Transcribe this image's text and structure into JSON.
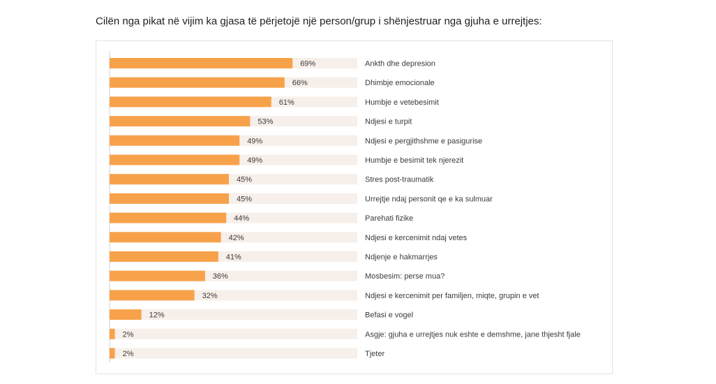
{
  "question": "Cilën nga pikat në vijim ka gjasa të përjetojë një person/grup i shënjestruar nga gjuha e urrejtjes:",
  "colors": {
    "bar": "#f7a24b",
    "track": "#f7efea",
    "axis": "#cfcfcf",
    "text": "#3a3a3a"
  },
  "chart_data": {
    "type": "bar",
    "orientation": "horizontal",
    "title": "",
    "xlabel": "",
    "ylabel": "",
    "xlim": [
      0,
      100
    ],
    "value_suffix": "%",
    "categories": [
      "Ankth dhe depresion",
      "Dhimbje emocionale",
      "Humbje e vetebesimit",
      "Ndjesi e turpit",
      "Ndjesi e pergjithshme e pasigurise",
      "Humbje e besimit tek njerezit",
      "Stres post-traumatik",
      "Urrejtje ndaj personit qe e ka sulmuar",
      "Parehati fizike",
      "Ndjesi e kercenimit ndaj vetes",
      "Ndjenje e hakmarrjes",
      "Mosbesim: perse mua?",
      "Ndjesi e kercenimit per familjen, miqte, grupin e vet",
      "Befasi e vogel",
      "Asgje: gjuha e urrejtjes nuk eshte e demshme, jane thjesht fjale",
      "Tjeter"
    ],
    "values": [
      69,
      66,
      61,
      53,
      49,
      49,
      45,
      45,
      44,
      42,
      41,
      36,
      32,
      12,
      2,
      2
    ]
  }
}
